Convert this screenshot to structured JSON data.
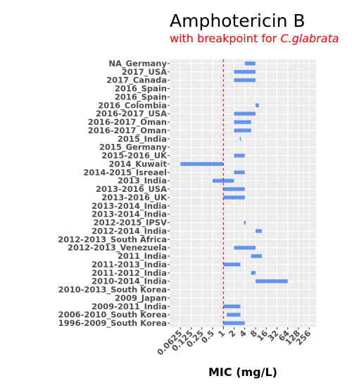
{
  "chart_data": {
    "type": "bar",
    "title": "Amphotericin B",
    "subtitle_prefix": "with breakpoint for ",
    "subtitle_species": "C.glabrata",
    "xlabel": "MIC (mg/L)",
    "ylabel": "",
    "x_scale": "log2",
    "xlim": [
      0.03125,
      400
    ],
    "x_ticks": [
      0.0625,
      0.125,
      0.25,
      0.5,
      1,
      2,
      4,
      8,
      16,
      32,
      64,
      128,
      256
    ],
    "x_tick_labels": [
      "0.0625",
      "0.125",
      "0.25",
      "0.5",
      "1",
      "2",
      "4",
      "8",
      "16",
      "32",
      "64",
      "128",
      "256"
    ],
    "breakpoint": 1,
    "grid": true,
    "bar_color": "#6495ed",
    "breakpoint_color": "#cc0000",
    "categories": [
      "NA_Germany",
      "2017_USA",
      "2017_Canada",
      "2016_Spain",
      "2016_Spain",
      "2016_Colombia",
      "2016-2017_USA",
      "2016-2017_Oman",
      "2016-2017_Oman",
      "2015_India",
      "2015_Germany",
      "2015-2016_UK",
      "2014_Kuwait",
      "2014-2015_Isreael",
      "2013_India",
      "2013-2016_USA",
      "2013-2016_UK",
      "2013-2014_India",
      "2013-2014_India",
      "2012-2015_IPSV",
      "2012-2014_India",
      "2012-2013_South Africa",
      "2012-2013_Venezuela",
      "2011_India",
      "2011-2013_India",
      "2011-2012_India",
      "2010-2014_India",
      "2010-2013_South Korea",
      "2009_Japan",
      "2009-2011_India",
      "2006-2010_South Korea",
      "1996-2009_South Korea"
    ],
    "ranges": [
      [
        4,
        8
      ],
      [
        2,
        8
      ],
      [
        2,
        8
      ],
      null,
      null,
      [
        8,
        10
      ],
      [
        2,
        8
      ],
      [
        2,
        6
      ],
      [
        2,
        6
      ],
      [
        2.9,
        3.1
      ],
      null,
      [
        2,
        4
      ],
      [
        0.0625,
        1
      ],
      [
        2,
        4
      ],
      [
        0.5,
        2
      ],
      [
        1,
        4
      ],
      [
        1,
        4
      ],
      null,
      null,
      [
        3.8,
        4.2
      ],
      [
        8,
        12
      ],
      null,
      [
        2,
        8
      ],
      [
        6,
        12
      ],
      [
        1,
        3
      ],
      [
        6,
        8
      ],
      [
        8,
        64
      ],
      null,
      null,
      [
        1,
        3
      ],
      [
        1.25,
        3
      ],
      [
        1,
        4
      ]
    ]
  }
}
